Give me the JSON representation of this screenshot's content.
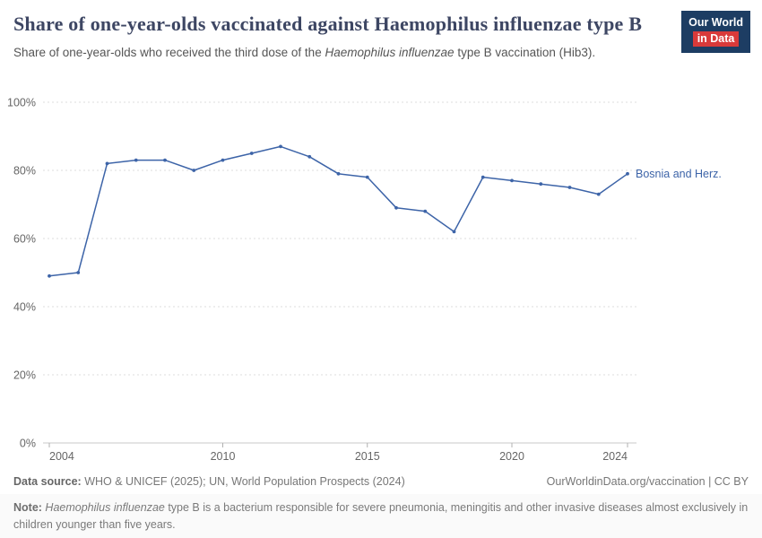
{
  "header": {
    "title": "Share of one-year-olds vaccinated against Haemophilus influenzae type B",
    "subtitle_prefix": "Share of one-year-olds who received the third dose of the ",
    "subtitle_italic": "Haemophilus influenzae",
    "subtitle_suffix": " type B vaccination (Hib3).",
    "logo_line1": "Our World",
    "logo_line2": "in Data"
  },
  "chart_data": {
    "type": "line",
    "title": "Share of one-year-olds vaccinated against Haemophilus influenzae type B",
    "xlim": [
      2004,
      2024
    ],
    "ylim": [
      0,
      100
    ],
    "grid": "horizontal-dashed",
    "legend_position": "end-of-line-label",
    "x_tick_values": [
      2004,
      2010,
      2015,
      2020,
      2024
    ],
    "x_tick_labels": [
      "2004",
      "2010",
      "2015",
      "2020",
      "2024"
    ],
    "y_tick_values": [
      0,
      20,
      40,
      60,
      80,
      100
    ],
    "y_tick_labels": [
      "0%",
      "20%",
      "40%",
      "60%",
      "80%",
      "100%"
    ],
    "series": [
      {
        "name": "Bosnia and Herz.",
        "color": "#3d64a8",
        "x": [
          2004,
          2005,
          2006,
          2007,
          2008,
          2009,
          2010,
          2011,
          2012,
          2013,
          2014,
          2015,
          2016,
          2017,
          2018,
          2019,
          2020,
          2021,
          2022,
          2023,
          2024
        ],
        "values": [
          49,
          50,
          82,
          83,
          83,
          80,
          83,
          85,
          87,
          84,
          79,
          78,
          69,
          68,
          62,
          78,
          77,
          76,
          75,
          73,
          79
        ]
      }
    ]
  },
  "footer": {
    "source_label": "Data source:",
    "source_text": " WHO & UNICEF (2025); UN, World Population Prospects (2024)",
    "rights": "OurWorldinData.org/vaccination | CC BY",
    "note_label": "Note:",
    "note_italic": " Haemophilus influenzae",
    "note_suffix": " type B is a bacterium responsible for severe pneumonia, meningitis and other invasive diseases almost exclusively in children younger than five years."
  }
}
